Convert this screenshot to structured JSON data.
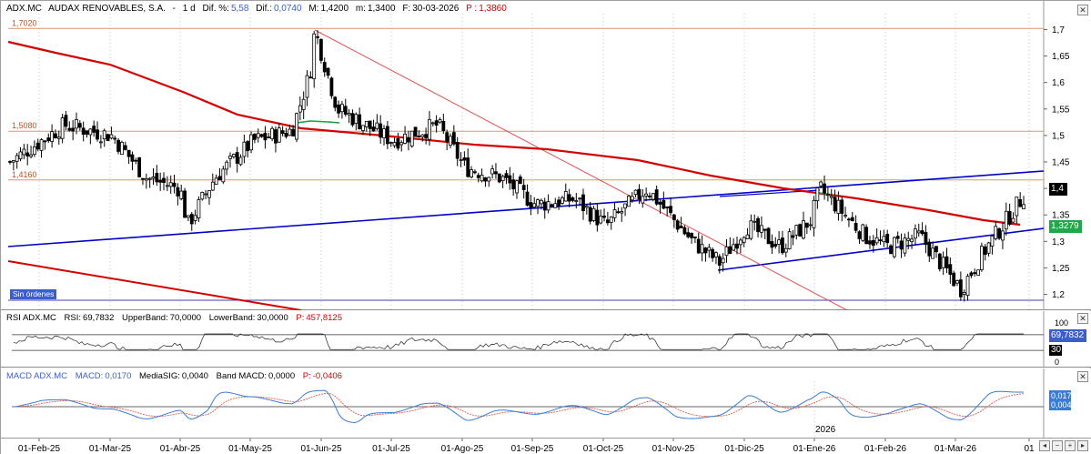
{
  "header": {
    "symbol": "ADX.MC",
    "name": "AUDAX RENOVABLES, S.A.",
    "interval": "1 d",
    "dif_pct_label": "Dif. %:",
    "dif_pct_value": "5,58",
    "dif_label": "Dif.:",
    "dif_value": "0,0740",
    "high_label": "M:",
    "high_value": "1,4200",
    "low_label": "m:",
    "low_value": "1,3400",
    "date_label": "F:",
    "date_value": "30-03-2026",
    "price_label": "P :",
    "price_value": "1,3860"
  },
  "price_panel": {
    "y_ticks": [
      "1,7",
      "1,65",
      "1,6",
      "1,55",
      "1,5",
      "1,45",
      "1,4",
      "1,35",
      "1,3",
      "1,25",
      "1,2"
    ],
    "last_price_tag": "1,4",
    "ma_tag": "1,3279",
    "levels": [
      "1,7020",
      "1,5080",
      "1,4160"
    ],
    "orders_badge": "Sin órdenes"
  },
  "rsi_panel": {
    "title": "RSI ADX.MC",
    "rsi_label": "RSI:",
    "rsi_value": "69,7832",
    "upper_label": "UpperBand:",
    "upper_value": "70,0000",
    "lower_label": "LowerBand:",
    "lower_value": "30,0000",
    "p_label": "P:",
    "p_value": "457,8125",
    "y_ticks": [
      "100",
      "0"
    ],
    "value_tag": "69,7832",
    "lower_tag": "30"
  },
  "macd_panel": {
    "title": "MACD ADX.MC",
    "macd_label": "MACD:",
    "macd_value": "0,0170",
    "signal_label": "MediaSIG:",
    "signal_value": "0,0040",
    "band_label": "Band MACD:",
    "band_value": "0,0000",
    "p_label": "P:",
    "p_value": "-0,0406",
    "tag_macd": "0,017",
    "tag_signal": "0,004",
    "year_marker": "2026"
  },
  "x_axis": {
    "labels": [
      "01-Feb-25",
      "01-Mar-25",
      "01-Abr-25",
      "01-May-25",
      "01-Jun-25",
      "01-Jul-25",
      "01-Ago-25",
      "01-Sep-25",
      "01-Oct-25",
      "01-Nov-25",
      "01-Dic-25",
      "01-Ene-26",
      "01-Feb-26",
      "01-Mar-26",
      "01"
    ]
  },
  "colors": {
    "candle": "#000000",
    "ma_long": "#d40000",
    "trend_blue": "#0000c8",
    "level_line": "#e8906a",
    "macd_line": "#3a7bd5",
    "signal_line": "#e05a4a",
    "ma_tag_bg": "#1fa84a",
    "price_tag_bg": "#000000",
    "rsi_tag_bg": "#3a5fcd"
  },
  "chart_data": {
    "type": "candlestick",
    "title": "ADX.MC - AUDAX RENOVABLES, S.A. - 1 d",
    "ylim": [
      1.17,
      1.73
    ],
    "close_series": [
      {
        "date": "01-Feb-25",
        "close": 1.45
      },
      {
        "date": "15-Feb-25",
        "close": 1.52
      },
      {
        "date": "01-Mar-25",
        "close": 1.5
      },
      {
        "date": "15-Mar-25",
        "close": 1.42
      },
      {
        "date": "01-Abr-25",
        "close": 1.4
      },
      {
        "date": "10-Abr-25",
        "close": 1.33
      },
      {
        "date": "15-Abr-25",
        "close": 1.42
      },
      {
        "date": "01-May-25",
        "close": 1.49
      },
      {
        "date": "15-May-25",
        "close": 1.51
      },
      {
        "date": "01-Jun-25",
        "close": 1.62
      },
      {
        "date": "05-Jun-25",
        "close": 1.7
      },
      {
        "date": "15-Jun-25",
        "close": 1.55
      },
      {
        "date": "01-Jul-25",
        "close": 1.49
      },
      {
        "date": "15-Jul-25",
        "close": 1.52
      },
      {
        "date": "01-Ago-25",
        "close": 1.44
      },
      {
        "date": "15-Ago-25",
        "close": 1.42
      },
      {
        "date": "01-Sep-25",
        "close": 1.37
      },
      {
        "date": "15-Sep-25",
        "close": 1.38
      },
      {
        "date": "01-Oct-25",
        "close": 1.33
      },
      {
        "date": "15-Oct-25",
        "close": 1.4
      },
      {
        "date": "01-Nov-25",
        "close": 1.3
      },
      {
        "date": "05-Nov-25",
        "close": 1.26
      },
      {
        "date": "15-Nov-25",
        "close": 1.33
      },
      {
        "date": "01-Dic-25",
        "close": 1.29
      },
      {
        "date": "15-Dic-25",
        "close": 1.34
      },
      {
        "date": "01-Ene-26",
        "close": 1.4
      },
      {
        "date": "15-Ene-26",
        "close": 1.31
      },
      {
        "date": "01-Feb-26",
        "close": 1.29
      },
      {
        "date": "15-Feb-26",
        "close": 1.31
      },
      {
        "date": "01-Mar-26",
        "close": 1.21
      },
      {
        "date": "15-Mar-26",
        "close": 1.28
      },
      {
        "date": "30-Mar-26",
        "close": 1.386
      }
    ]
  }
}
